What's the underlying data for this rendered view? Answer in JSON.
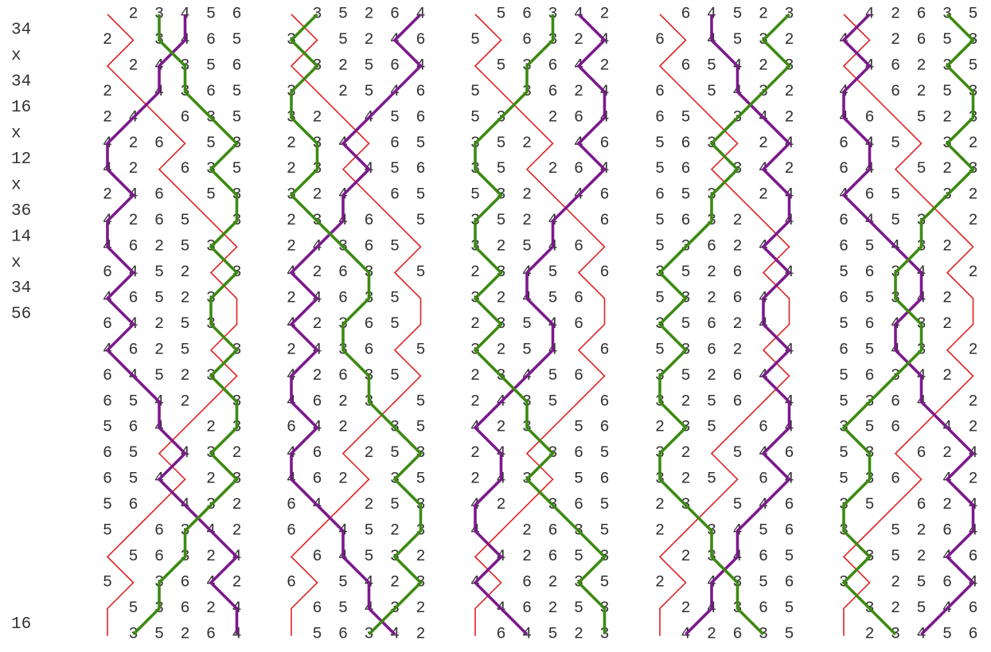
{
  "place_notation_labels": [
    "34",
    "x",
    "34",
    "16",
    "x",
    "12",
    "x",
    "36",
    "14",
    "x",
    "34",
    "56"
  ],
  "lead_end_label": "16",
  "hidden_bell": "1",
  "traced_bells": [
    {
      "bell": "1",
      "color": "#e02222",
      "weight": "thin"
    },
    {
      "bell": "4",
      "color": "#7b1a8c",
      "weight": "thick"
    },
    {
      "bell": "3",
      "color": "#3d8a12",
      "weight": "thick"
    }
  ],
  "text_color": "#333333",
  "leads": [
    [
      "123456",
      "213465",
      "124356",
      "214365",
      "241635",
      "426153",
      "421635",
      "246153",
      "426513",
      "462531",
      "645213",
      "465231",
      "642531",
      "462513",
      "645231",
      "654213",
      "564123",
      "651432",
      "654123",
      "561432",
      "516342",
      "156324",
      "513642",
      "153624",
      "135264"
    ],
    [
      "135264",
      "315246",
      "132564",
      "312546",
      "321456",
      "234165",
      "231456",
      "324165",
      "234615",
      "243651",
      "426315",
      "246351",
      "423651",
      "243615",
      "426351",
      "462315",
      "642135",
      "461253",
      "462135",
      "641253",
      "614523",
      "164532",
      "615423",
      "165432",
      "156342"
    ],
    [
      "156342",
      "516324",
      "153642",
      "513624",
      "531264",
      "352146",
      "351264",
      "532146",
      "352416",
      "325461",
      "234516",
      "324561",
      "235461",
      "325416",
      "234561",
      "243516",
      "423156",
      "241365",
      "243156",
      "421365",
      "412635",
      "142653",
      "416235",
      "146253",
      "164523"
    ],
    [
      "164523",
      "614532",
      "165423",
      "615432",
      "651342",
      "563124",
      "561342",
      "653124",
      "563214",
      "536241",
      "352614",
      "532641",
      "356241",
      "536214",
      "352641",
      "325614",
      "235164",
      "321546",
      "325164",
      "231546",
      "213456",
      "123465",
      "214356",
      "124365",
      "142635"
    ],
    [
      "142635",
      "412653",
      "146235",
      "416253",
      "461523",
      "645132",
      "641523",
      "465132",
      "645312",
      "654321",
      "563412",
      "653421",
      "564321",
      "654312",
      "563421",
      "536412",
      "356142",
      "531624",
      "536142",
      "351624",
      "315264",
      "135246",
      "312564",
      "132546",
      "123456"
    ]
  ]
}
